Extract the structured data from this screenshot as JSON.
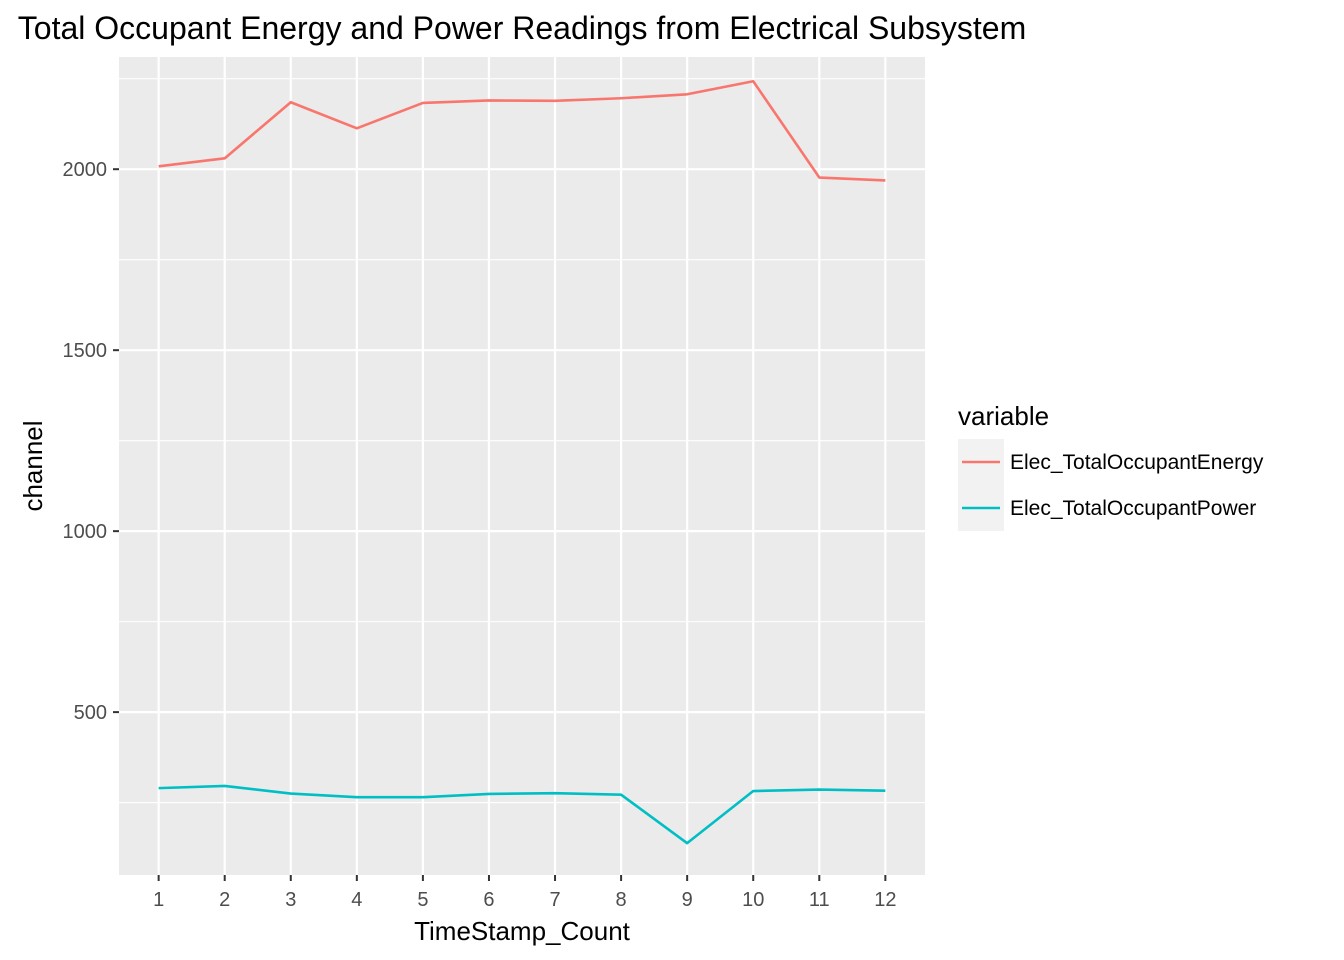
{
  "chart_data": {
    "type": "line",
    "title": "Total Occupant Energy and Power Readings from Electrical Subsystem",
    "xlabel": "TimeStamp_Count",
    "ylabel": "channel",
    "x": [
      1,
      2,
      3,
      4,
      5,
      6,
      7,
      8,
      9,
      10,
      11,
      12
    ],
    "x_ticks": [
      "1",
      "2",
      "3",
      "4",
      "5",
      "6",
      "7",
      "8",
      "9",
      "10",
      "11",
      "12"
    ],
    "y_ticks": [
      "500",
      "1000",
      "1500",
      "2000"
    ],
    "y_tick_values": [
      500,
      1000,
      1500,
      2000
    ],
    "xlim": [
      0.4,
      12.6
    ],
    "ylim": [
      50,
      2310
    ],
    "grid": true,
    "legend": {
      "title": "variable",
      "position": "right"
    },
    "series": [
      {
        "name": "Elec_TotalOccupantEnergy",
        "color": "#F8766D",
        "values": [
          2008,
          2030,
          2185,
          2113,
          2183,
          2190,
          2189,
          2196,
          2207,
          2243,
          1977,
          1969
        ]
      },
      {
        "name": "Elec_TotalOccupantPower",
        "color": "#00BFC4",
        "values": [
          290,
          296,
          275,
          265,
          265,
          274,
          276,
          272,
          138,
          282,
          286,
          283
        ]
      }
    ],
    "panel_background": "#EBEBEB",
    "grid_color": "#FFFFFF"
  }
}
